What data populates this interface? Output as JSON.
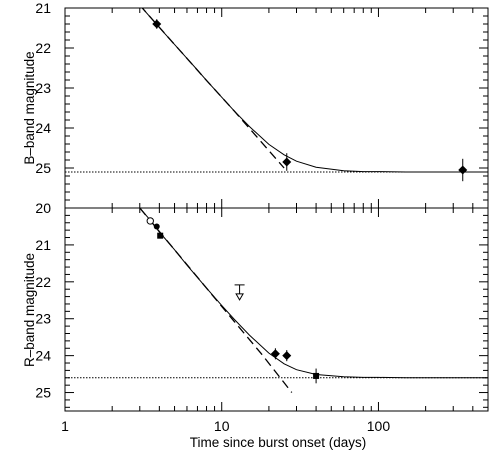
{
  "chart_data": [
    {
      "type": "scatter",
      "panel": "B-band",
      "xlabel": "",
      "ylabel": "B–band magnitude",
      "x_scale": "log",
      "xlim": [
        1,
        500
      ],
      "ylim": [
        21,
        26.0
      ],
      "y_inverted": true,
      "y_ticks": [
        21,
        22,
        23,
        24,
        25
      ],
      "y_tick_labels": [
        "21",
        "22",
        "23",
        "24",
        "25"
      ],
      "points": [
        {
          "x": 3.85,
          "y": 21.4,
          "err": 0.12,
          "marker": "filled-diamond"
        },
        {
          "x": 26.0,
          "y": 24.85,
          "err": 0.22,
          "marker": "filled-diamond"
        },
        {
          "x": 345.0,
          "y": 25.05,
          "err": 0.28,
          "marker": "filled-diamond"
        }
      ],
      "curves": [
        {
          "style": "solid",
          "description": "fit",
          "x": [
            3.0,
            3.5,
            4.0,
            5.0,
            6.0,
            7.0,
            8.0,
            10.0,
            12.0,
            15.0,
            20.0,
            25.0,
            30.0,
            40.0,
            60.0,
            80.0,
            100.0,
            150.0,
            200.0,
            300.0,
            500.0
          ],
          "y": [
            20.93,
            21.23,
            21.49,
            21.91,
            22.26,
            22.55,
            22.81,
            23.23,
            23.57,
            23.96,
            24.41,
            24.67,
            24.83,
            24.98,
            25.07,
            25.09,
            25.09,
            25.1,
            25.1,
            25.1,
            25.1
          ]
        },
        {
          "style": "dashed",
          "description": "power law",
          "x": [
            3.0,
            5.0,
            8.0,
            12.0,
            18.0,
            25.0
          ],
          "y": [
            20.93,
            21.91,
            22.81,
            23.57,
            24.36,
            25.0
          ]
        },
        {
          "style": "dotted",
          "description": "constant level",
          "x": [
            1,
            500
          ],
          "y": [
            25.1,
            25.1
          ]
        }
      ]
    },
    {
      "type": "scatter",
      "panel": "R-band",
      "xlabel": "Time since burst onset (days)",
      "ylabel": "R–band magnitude",
      "x_scale": "log",
      "xlim": [
        1,
        500
      ],
      "ylim": [
        20,
        25.5
      ],
      "y_inverted": true,
      "y_ticks": [
        20,
        21,
        22,
        23,
        24,
        25
      ],
      "y_tick_labels": [
        "20",
        "21",
        "22",
        "23",
        "24",
        "25"
      ],
      "x_ticks": [
        1,
        10,
        100
      ],
      "x_tick_labels": [
        "1",
        "10",
        "100"
      ],
      "points": [
        {
          "x": 3.5,
          "y": 20.35,
          "err": 0,
          "marker": "open-circle"
        },
        {
          "x": 3.85,
          "y": 20.5,
          "err": 0.05,
          "marker": "filled-circle"
        },
        {
          "x": 4.05,
          "y": 20.75,
          "err": 0.05,
          "marker": "filled-square"
        },
        {
          "x": 22.0,
          "y": 23.95,
          "err": 0.15,
          "marker": "filled-diamond"
        },
        {
          "x": 26.0,
          "y": 24.0,
          "err": 0.15,
          "marker": "filled-diamond"
        },
        {
          "x": 40.0,
          "y": 24.55,
          "err": 0.2,
          "marker": "filled-square"
        }
      ],
      "upper_limits": [
        {
          "x": 13.0,
          "y": 22.3
        }
      ],
      "curves": [
        {
          "style": "solid",
          "description": "fit",
          "x": [
            3.0,
            3.5,
            4.0,
            5.0,
            6.0,
            8.0,
            10.0,
            12.0,
            15.0,
            20.0,
            25.0,
            30.0,
            40.0,
            60.0,
            80.0,
            100.0,
            150.0,
            200.0,
            300.0,
            500.0
          ],
          "y": [
            20.0,
            20.33,
            20.65,
            21.13,
            21.55,
            22.17,
            22.64,
            23.01,
            23.44,
            23.93,
            24.22,
            24.38,
            24.51,
            24.57,
            24.59,
            24.59,
            24.6,
            24.6,
            24.6,
            24.6
          ]
        },
        {
          "style": "dashed",
          "description": "power law",
          "x": [
            3.0,
            5.0,
            8.0,
            12.0,
            18.0,
            28.0
          ],
          "y": [
            20.0,
            21.13,
            22.17,
            23.07,
            23.96,
            25.0
          ]
        },
        {
          "style": "dotted",
          "description": "constant level",
          "x": [
            1,
            500
          ],
          "y": [
            24.6,
            24.6
          ]
        }
      ]
    }
  ]
}
